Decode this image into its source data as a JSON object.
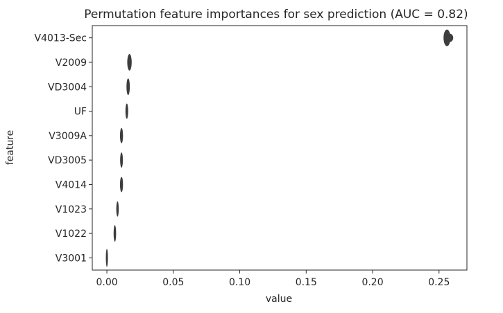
{
  "chart_data": {
    "type": "violin",
    "title": "Permutation feature importances for sex prediction (AUC = 0.82)",
    "xlabel": "value",
    "ylabel": "feature",
    "xlim": [
      -0.011,
      0.271
    ],
    "xticks": [
      0.0,
      0.05,
      0.1,
      0.15,
      0.2,
      0.25
    ],
    "xtick_labels": [
      "0.00",
      "0.05",
      "0.10",
      "0.15",
      "0.20",
      "0.25"
    ],
    "grid": false,
    "categories": [
      "V4013-Sec",
      "V2009",
      "VD3004",
      "UF",
      "V3009A",
      "VD3005",
      "V4014",
      "V1023",
      "V1022",
      "V3001"
    ],
    "values": [
      0.256,
      0.017,
      0.016,
      0.015,
      0.011,
      0.011,
      0.011,
      0.008,
      0.006,
      0.0
    ],
    "color": "#3d3d3d"
  }
}
